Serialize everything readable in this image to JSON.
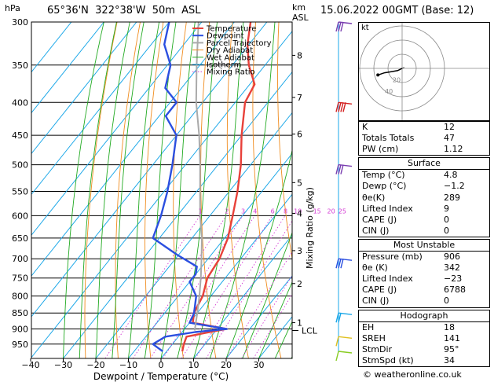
{
  "header": {
    "pressure_unit": "hPa",
    "location": "65°36'N  322°38'W  50m  ASL",
    "height_unit": "km\nASL",
    "km_label": "km",
    "asl_label": "ASL",
    "timestamp": "15.06.2022  00GMT  (Base: 12)"
  },
  "colors": {
    "temperature": "#e8413a",
    "dewpoint": "#2b4fe0",
    "parcel": "#aaaaaa",
    "dry_adiabat": "#f08c1e",
    "wet_adiabat": "#22aa22",
    "isotherm": "#1aa7e8",
    "mixing_ratio": "#d43ad4"
  },
  "chart_data": {
    "type": "line",
    "title": "",
    "xlabel": "Dewpoint / Temperature (°C)",
    "ylabel": "hPa",
    "right_label": "Mixing Ratio (g/kg)",
    "xlim": [
      -40,
      40
    ],
    "ylim": [
      300,
      975
    ],
    "x_ticks": [
      "−40",
      "−30",
      "−20",
      "−10",
      "0",
      "10",
      "20",
      "30"
    ],
    "pressure_ticks": [
      "300",
      "350",
      "400",
      "450",
      "500",
      "550",
      "600",
      "650",
      "700",
      "750",
      "800",
      "850",
      "900",
      "950"
    ],
    "km_ticks": [
      {
        "p": 338,
        "label": "8"
      },
      {
        "p": 393,
        "label": "7"
      },
      {
        "p": 448,
        "label": "6"
      },
      {
        "p": 533,
        "label": "5"
      },
      {
        "p": 595,
        "label": "4"
      },
      {
        "p": 680,
        "label": "3"
      },
      {
        "p": 765,
        "label": "2"
      },
      {
        "p": 880,
        "label": "1"
      }
    ],
    "lcl_label": "LCL",
    "lcl_pressure": 905,
    "mixing_ratio_labels": [
      "1",
      "2",
      "3",
      "4",
      "6",
      "8",
      "10",
      "15",
      "20",
      "25"
    ],
    "mixing_ratio_values": [
      1,
      2,
      3,
      4,
      6,
      8,
      10,
      15,
      20,
      25
    ],
    "legend": [
      "Temperature",
      "Dewpoint",
      "Parcel Trajectory",
      "Dry Adiabat",
      "Wet Adiabat",
      "Isotherm",
      "Mixing Ratio"
    ],
    "legend_position": "top-left",
    "series": [
      {
        "name": "Temperature",
        "p": [
          975,
          950,
          925,
          910,
          900,
          880,
          850,
          800,
          750,
          700,
          650,
          600,
          550,
          500,
          450,
          400,
          375,
          350,
          325,
          300
        ],
        "t": [
          4.8,
          3.5,
          2.5,
          8.5,
          13.0,
          1.0,
          -1.0,
          -2.5,
          -5.5,
          -6.5,
          -9.0,
          -13.0,
          -17.5,
          -23.0,
          -30.0,
          -37.0,
          -38.5,
          -45.0,
          -50.5,
          -55.0
        ]
      },
      {
        "name": "Dewpoint",
        "p": [
          975,
          950,
          925,
          910,
          900,
          880,
          850,
          800,
          760,
          740,
          720,
          690,
          650,
          600,
          550,
          500,
          450,
          420,
          400,
          380,
          350,
          325,
          300
        ],
        "t": [
          -1.2,
          -6.0,
          -4.0,
          4.0,
          13.0,
          0.0,
          -1.0,
          -4.5,
          -10.0,
          -10.0,
          -11.5,
          -20.5,
          -32.0,
          -35.0,
          -39.0,
          -44.0,
          -50.0,
          -58.0,
          -58.0,
          -65.0,
          -69.0,
          -76.0,
          -80.0
        ]
      },
      {
        "name": "Parcel Trajectory",
        "p": [
          905,
          850,
          800,
          750,
          700,
          650,
          600,
          550,
          500,
          450,
          400,
          350,
          300
        ],
        "t": [
          3.5,
          0.0,
          -3.5,
          -7.5,
          -12.0,
          -17.0,
          -23.0,
          -29.0,
          -35.5,
          -43.0,
          -52.0,
          -61.0,
          -71.0
        ]
      }
    ]
  },
  "hodograph": {
    "unit_label": "kt",
    "ring_labels": [
      "20",
      "40"
    ],
    "trace_u": [
      0,
      -4,
      -10,
      -16,
      -22
    ],
    "trace_v": [
      0,
      -2,
      -3,
      -4,
      -6
    ],
    "storm_u": [
      0,
      2
    ],
    "storm_v": [
      0,
      1
    ]
  },
  "indices": {
    "rows": [
      {
        "label": "K",
        "value": "12"
      },
      {
        "label": "Totals Totals",
        "value": "47"
      },
      {
        "label": "PW (cm)",
        "value": "1.12"
      }
    ]
  },
  "surface": {
    "title": "Surface",
    "rows": [
      {
        "label": "Temp (°C)",
        "value": "4.8"
      },
      {
        "label": "Dewp (°C)",
        "value": "−1.2"
      },
      {
        "label": "θe(K)",
        "value": "289"
      },
      {
        "label": "Lifted Index",
        "value": "9"
      },
      {
        "label": "CAPE (J)",
        "value": "0"
      },
      {
        "label": "CIN (J)",
        "value": "0"
      }
    ]
  },
  "unstable": {
    "title": "Most Unstable",
    "rows": [
      {
        "label": "Pressure (mb)",
        "value": "906"
      },
      {
        "label": "θe (K)",
        "value": "342"
      },
      {
        "label": "Lifted Index",
        "value": "−23"
      },
      {
        "label": "CAPE (J)",
        "value": "6788"
      },
      {
        "label": "CIN (J)",
        "value": "0"
      }
    ]
  },
  "hodo_stats": {
    "title": "Hodograph",
    "rows": [
      {
        "label": "EH",
        "value": "18"
      },
      {
        "label": "SREH",
        "value": "141"
      },
      {
        "label": "StmDir",
        "value": "95°"
      },
      {
        "label": "StmSpd (kt)",
        "value": "34"
      }
    ]
  },
  "wind_barbs": [
    {
      "p": 300,
      "color": "#7a3fb0",
      "speed_flags": 3
    },
    {
      "p": 400,
      "color": "#d42020",
      "speed_flags": 4
    },
    {
      "p": 500,
      "color": "#7a3fb0",
      "speed_flags": 3
    },
    {
      "p": 700,
      "color": "#2b4fe0",
      "speed_flags": 3
    },
    {
      "p": 850,
      "color": "#1aa7e8",
      "speed_flags": 2
    },
    {
      "p": 925,
      "color": "#e0c020",
      "speed_flags": 1
    },
    {
      "p": 975,
      "color": "#88cc22",
      "speed_flags": 1
    }
  ],
  "credit": "© weatheronline.co.uk"
}
